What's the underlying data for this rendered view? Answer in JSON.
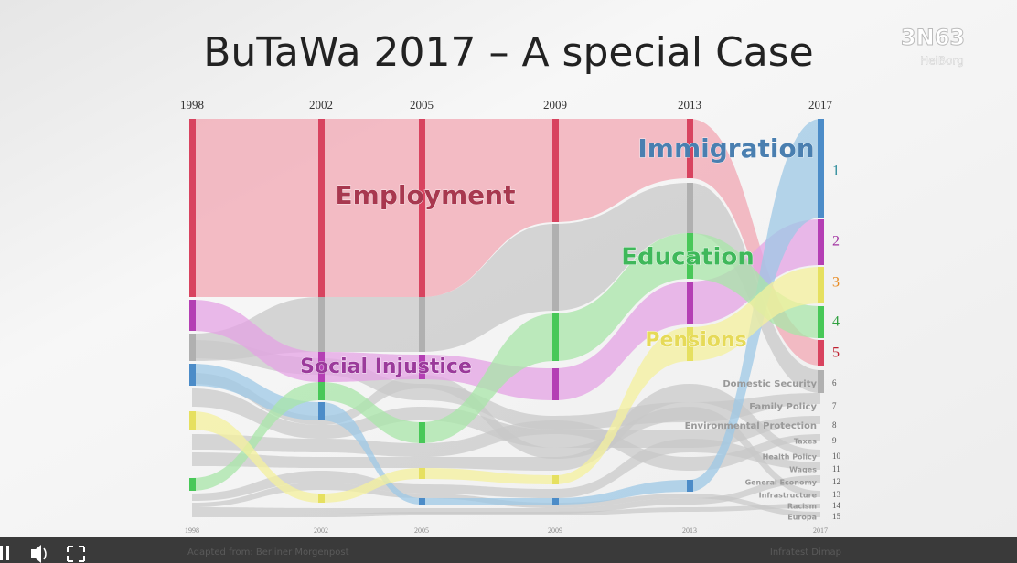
{
  "slide": {
    "title": "BuTaWa 2017 – A special Case",
    "logo": "HeiBorg",
    "years": [
      "1998",
      "2002",
      "2005",
      "2009",
      "2013",
      "2017"
    ],
    "highlights": [
      "Employment",
      "Social Injustice",
      "Immigration",
      "Education",
      "Pensions"
    ],
    "ranks": [
      "1",
      "2",
      "3",
      "4",
      "5",
      "6",
      "7",
      "8",
      "9",
      "10",
      "11",
      "12",
      "13",
      "14",
      "15"
    ],
    "topics": [
      "Domestic Security",
      "Family Policy",
      "Environmental Protection",
      "Taxes",
      "Health Policy",
      "Wages",
      "General Economy",
      "Infrastructure",
      "Racism",
      "Europa"
    ],
    "sources": {
      "left": "Adapted from: Berliner Morgenpost",
      "right": "Infratest Dimap"
    }
  }
}
